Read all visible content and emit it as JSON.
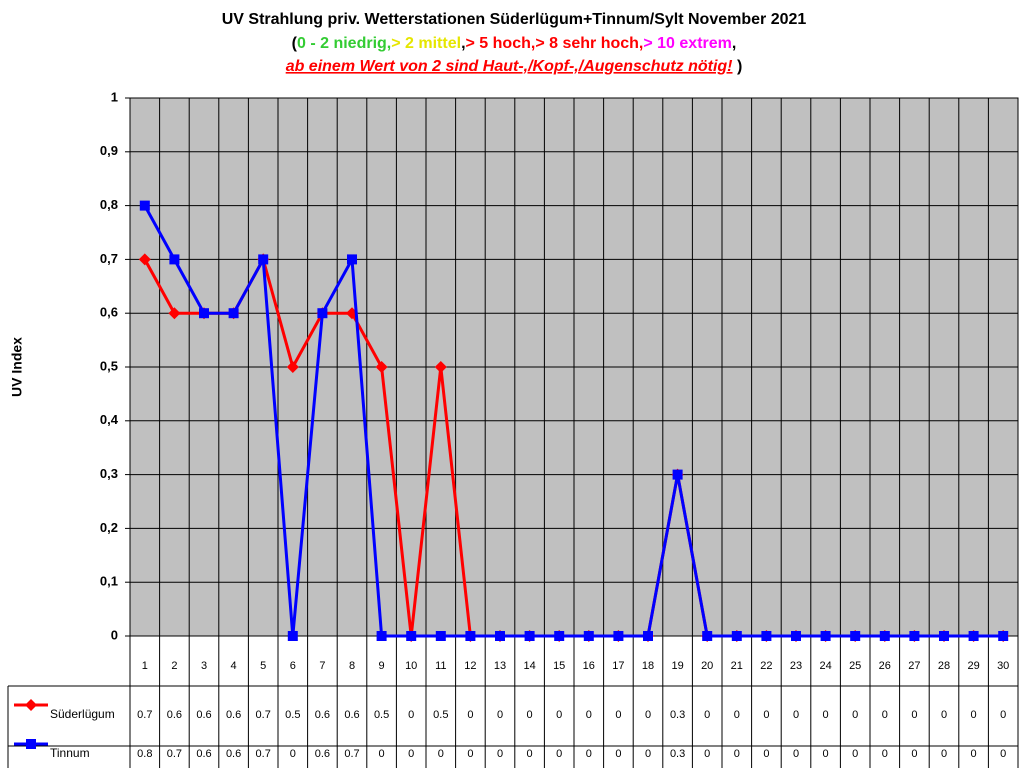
{
  "chart_data": {
    "type": "line",
    "title": "UV Strahlung priv. Wetterstationen Süderlügum+Tinnum/Sylt November 2021",
    "subtitle": [
      [
        {
          "text": "(",
          "color": "#000000"
        },
        {
          "text": "0 - 2 niedrig,",
          "color": "#33cc33"
        },
        {
          "text": "> 2 mittel",
          "color": "#e6e600"
        },
        {
          "text": ",",
          "color": "#000000"
        },
        {
          "text": "> 5 hoch,",
          "color": "#ff0000"
        },
        {
          "text": "> 8 sehr hoch,",
          "color": "#ff0000"
        },
        {
          "text": "> 10 extrem",
          "color": "#ff00ff"
        },
        {
          "text": ",",
          "color": "#000000"
        }
      ],
      [
        {
          "text": "ab einem Wert von 2 sind Haut-,/Kopf-,/Augenschutz nötig!",
          "color": "#ff0000",
          "style": "italic",
          "underline": true
        },
        {
          "text": " )",
          "color": "#000000"
        }
      ]
    ],
    "y_label": "UV Index",
    "categories": [
      "1",
      "2",
      "3",
      "4",
      "5",
      "6",
      "7",
      "8",
      "9",
      "10",
      "11",
      "12",
      "13",
      "14",
      "15",
      "16",
      "17",
      "18",
      "19",
      "20",
      "21",
      "22",
      "23",
      "24",
      "25",
      "26",
      "27",
      "28",
      "29",
      "30"
    ],
    "series": [
      {
        "name": "Süderlügum",
        "color": "#ff0000",
        "marker": "diamond",
        "values": [
          0.7,
          0.6,
          0.6,
          0.6,
          0.7,
          0.5,
          0.6,
          0.6,
          0.5,
          0,
          0.5,
          0,
          0,
          0,
          0,
          0,
          0,
          0,
          0.3,
          0,
          0,
          0,
          0,
          0,
          0,
          0,
          0,
          0,
          0,
          0
        ]
      },
      {
        "name": "Tinnum",
        "color": "#0000ff",
        "marker": "square",
        "values": [
          0.8,
          0.7,
          0.6,
          0.6,
          0.7,
          0,
          0.6,
          0.7,
          0,
          0,
          0,
          0,
          0,
          0,
          0,
          0,
          0,
          0,
          0.3,
          0,
          0,
          0,
          0,
          0,
          0,
          0,
          0,
          0,
          0,
          0
        ]
      }
    ],
    "ylim": [
      0,
      1
    ],
    "yticks": [
      0,
      {
        "value": 0.1,
        "label": "0,1"
      },
      {
        "value": 0.2,
        "label": "0,2"
      },
      {
        "value": 0.3,
        "label": "0,3"
      },
      {
        "value": 0.4,
        "label": "0,4"
      },
      {
        "value": 0.5,
        "label": "0,5"
      },
      {
        "value": 0.6,
        "label": "0,6"
      },
      {
        "value": 0.7,
        "label": "0,7"
      },
      {
        "value": 0.8,
        "label": "0,8"
      },
      {
        "value": 0.9,
        "label": "0,9"
      },
      1
    ],
    "grid": true,
    "plot_background": "#c0c0c0",
    "data_table": true
  }
}
